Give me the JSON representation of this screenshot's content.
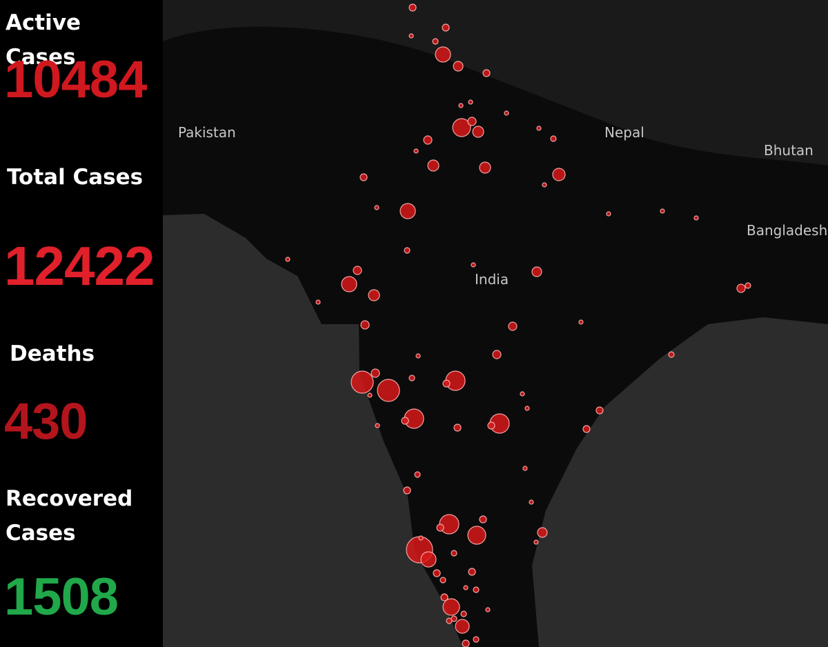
{
  "sidebar": {
    "stats": [
      {
        "label": "Active Cases",
        "value": 10484
      },
      {
        "label": "Total Cases",
        "value": 12422
      },
      {
        "label": "Deaths",
        "value": 430
      },
      {
        "label": "Recovered Cases",
        "value": 1508
      }
    ]
  },
  "map": {
    "labels": [
      "Pakistan",
      "Nepal",
      "Bhutan",
      "Bangladesh",
      "India"
    ]
  }
}
